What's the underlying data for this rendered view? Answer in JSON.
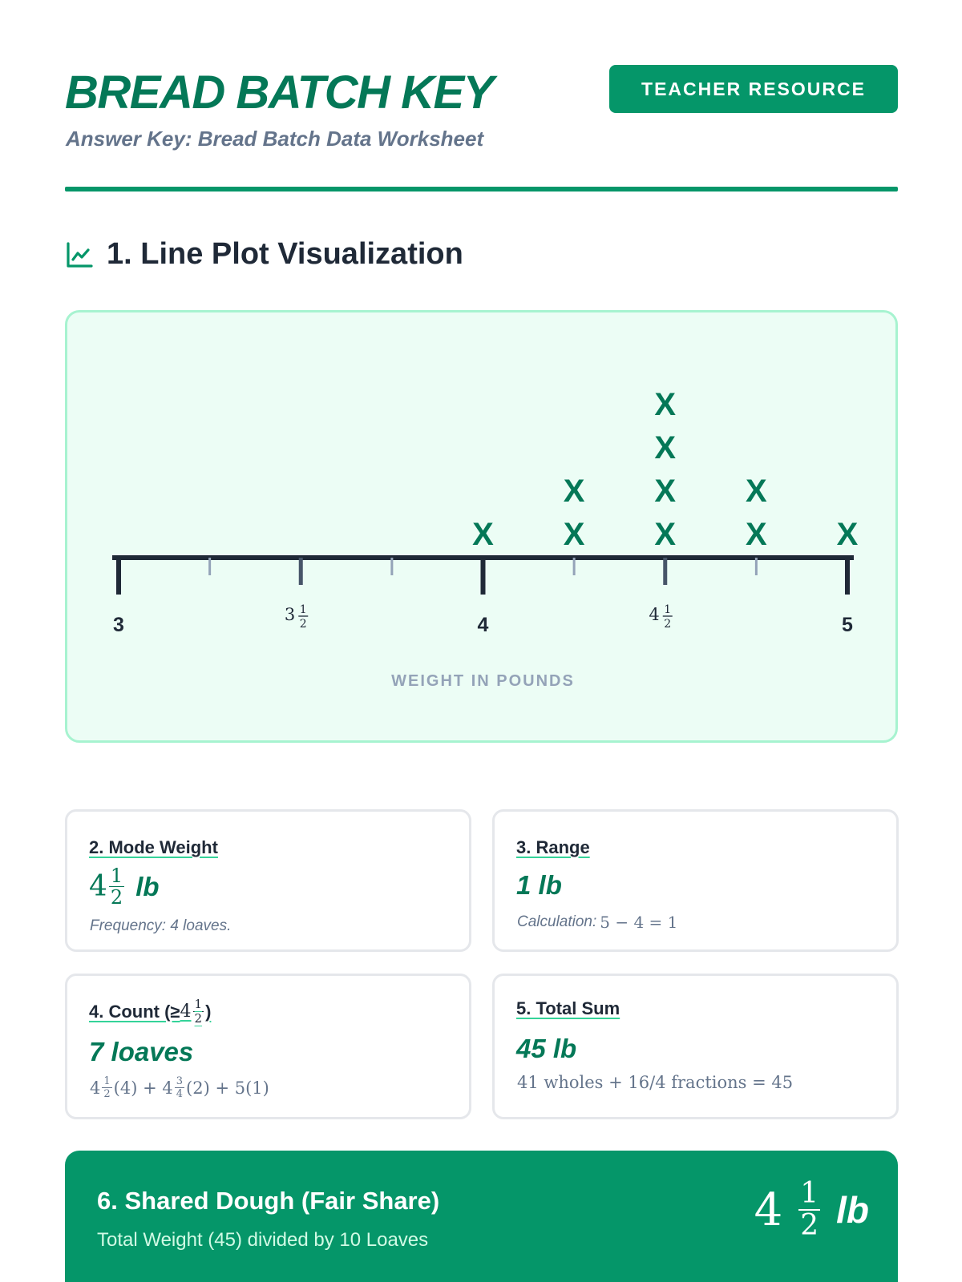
{
  "header": {
    "title": "BREAD BATCH KEY",
    "subtitle": "Answer Key: Bread Batch Data Worksheet",
    "badge": "TEACHER RESOURCE"
  },
  "section1": {
    "title": "1. Line Plot Visualization",
    "icon": "line-chart-icon"
  },
  "chart_data": {
    "type": "line-plot",
    "xlabel": "WEIGHT IN POUNDS",
    "xlim": [
      3,
      5
    ],
    "tick_step": 0.25,
    "tick_labels": [
      {
        "value": 3,
        "whole": "3",
        "num": "",
        "den": ""
      },
      {
        "value": 3.5,
        "whole": "3",
        "num": "1",
        "den": "2"
      },
      {
        "value": 4,
        "whole": "4",
        "num": "",
        "den": ""
      },
      {
        "value": 4.5,
        "whole": "4",
        "num": "1",
        "den": "2"
      },
      {
        "value": 5,
        "whole": "5",
        "num": "",
        "den": ""
      }
    ],
    "marker": "X",
    "points": [
      {
        "x": 4,
        "count": 1
      },
      {
        "x": 4.25,
        "count": 2
      },
      {
        "x": 4.5,
        "count": 4
      },
      {
        "x": 4.75,
        "count": 2
      },
      {
        "x": 5,
        "count": 1
      }
    ],
    "colors": {
      "marker": "#047857",
      "axis": "#1f2937",
      "minor_tick": "#94a3b8",
      "half_tick": "#475569"
    }
  },
  "cards": {
    "mode": {
      "title": "2. Mode Weight",
      "value_whole": "4",
      "value_num": "1",
      "value_den": "2",
      "value_unit": "lb",
      "note": "Frequency: 4 loaves."
    },
    "range": {
      "title": "3. Range",
      "value": "1 lb",
      "note_label": "Calculation:",
      "note_math": "5 − 4 = 1"
    },
    "count": {
      "title_prefix": "4. Count (≥ ",
      "title_whole": "4",
      "title_num": "1",
      "title_den": "2",
      "title_suffix": ")",
      "value": "7 loaves",
      "math_a_whole": "4",
      "math_a_num": "1",
      "math_a_den": "2",
      "math_a_tail": "(4) + ",
      "math_b_whole": "4",
      "math_b_num": "3",
      "math_b_den": "4",
      "math_b_tail": "(2) + 5(1)"
    },
    "total": {
      "title": "5. Total Sum",
      "value": "45 lb",
      "note": "41 wholes + 16/4 fractions = 45"
    }
  },
  "banner": {
    "title": "6. Shared Dough (Fair Share)",
    "subtitle": "Total Weight (45) divided by 10 Loaves",
    "value_whole": "4",
    "value_num": "1",
    "value_den": "2",
    "value_unit": "lb"
  }
}
